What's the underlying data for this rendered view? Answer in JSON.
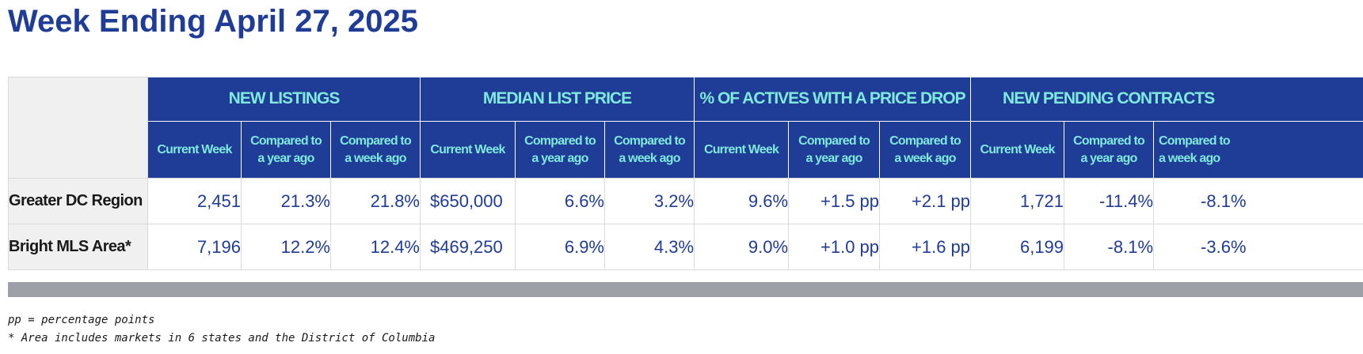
{
  "title": "Week Ending April 27, 2025",
  "groups": [
    {
      "label": "NEW LISTINGS"
    },
    {
      "label": "MEDIAN LIST PRICE"
    },
    {
      "label": "% OF ACTIVES WITH A PRICE DROP"
    },
    {
      "label": "NEW PENDING CONTRACTS"
    }
  ],
  "subheaders": {
    "current_week": "Current Week",
    "year_ago": {
      "line1": "Compared to",
      "line2": "a year ago"
    },
    "week_ago": {
      "line1": "Compared to",
      "line2": "a week ago"
    }
  },
  "rows": [
    {
      "label": "Greater DC Region",
      "values": [
        "2,451",
        "21.3%",
        "21.8%",
        "$650,000",
        "6.6%",
        "3.2%",
        "9.6%",
        "+1.5 pp",
        "+2.1 pp",
        "1,721",
        "-11.4%",
        "-8.1%"
      ]
    },
    {
      "label": "Bright MLS Area*",
      "values": [
        "7,196",
        "12.2%",
        "12.4%",
        "$469,250",
        "6.9%",
        "4.3%",
        "9.0%",
        "+1.0 pp",
        "+1.6 pp",
        "6,199",
        "-8.1%",
        "-3.6%"
      ]
    }
  ],
  "footnotes": [
    "pp = percentage points",
    "* Area includes markets in 6 states and the District of Columbia"
  ],
  "colors": {
    "header_bg": "#1f3c96",
    "header_text": "#7fe9dd",
    "value_text": "#1f3c96",
    "label_bg": "#f0f0f0",
    "bar_gray": "#9da1a7"
  }
}
